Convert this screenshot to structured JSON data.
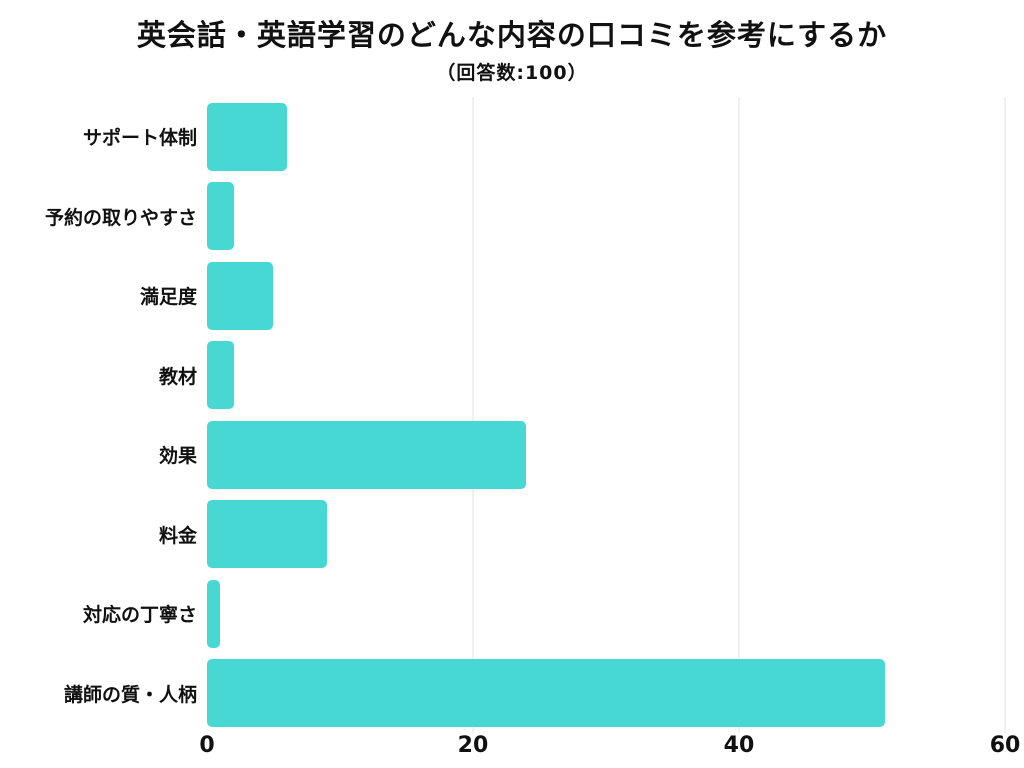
{
  "chart_data": {
    "type": "bar",
    "orientation": "horizontal",
    "title": "英会話・英語学習のどんな内容の口コミを参考にするか",
    "subtitle": "（回答数:100）",
    "categories": [
      "サポート体制",
      "予約の取りやすさ",
      "満足度",
      "教材",
      "効果",
      "料金",
      "対応の丁寧さ",
      "講師の質・人柄"
    ],
    "values": [
      6,
      2,
      5,
      2,
      24,
      9,
      1,
      51
    ],
    "xlabel": "",
    "ylabel": "",
    "xlim": [
      0,
      60
    ],
    "x_ticks": [
      0,
      20,
      40,
      60
    ],
    "bar_color": "#47d8d4",
    "grid": true,
    "legend": false,
    "background_color": "#ffffff",
    "text_color": "#111111"
  }
}
